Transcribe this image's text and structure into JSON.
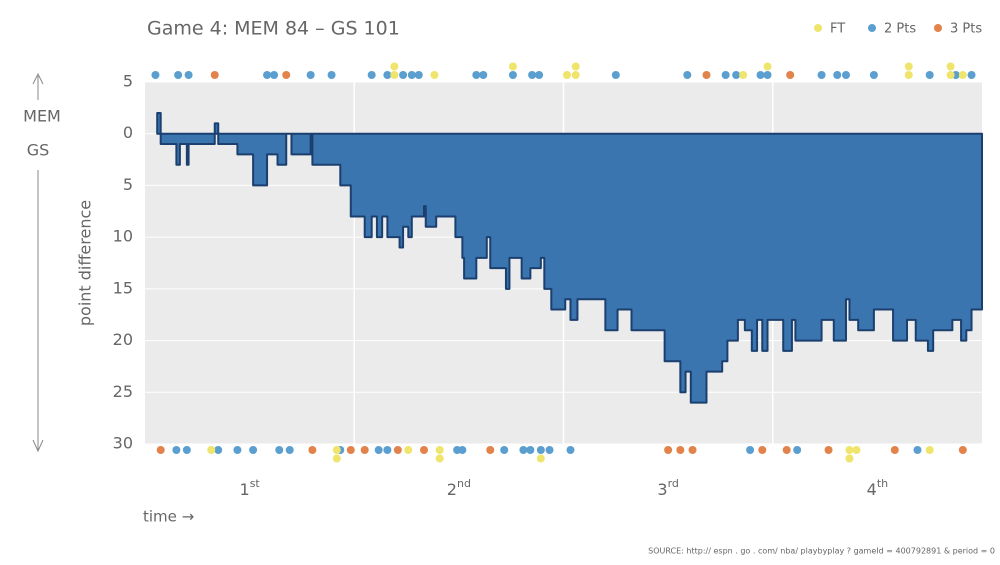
{
  "chart_data": {
    "type": "step-area",
    "title": "Game 4: MEM 84  –  GS 101",
    "ylabel": "point difference",
    "xlabel": "time →",
    "top_team": "MEM",
    "bottom_team": "GS",
    "source": "SOURCE:  http:// espn . go . com/ nba/ playbyplay ? gameId = 400792891 & period = 0",
    "xlim": [
      0,
      48
    ],
    "ylim": [
      -30,
      5
    ],
    "yticks": [
      5,
      0,
      {
        "value": -5,
        "label": "5"
      },
      {
        "value": -10,
        "label": "10"
      },
      {
        "value": -15,
        "label": "15"
      },
      {
        "value": -20,
        "label": "20"
      },
      {
        "value": -25,
        "label": "25"
      },
      {
        "value": -30,
        "label": "30"
      }
    ],
    "xgrid": [
      12,
      24,
      36
    ],
    "xticks": [
      {
        "value": 6,
        "label": "1",
        "sup": "st"
      },
      {
        "value": 18,
        "label": "2",
        "sup": "nd"
      },
      {
        "value": 30,
        "label": "3",
        "sup": "rd"
      },
      {
        "value": 42,
        "label": "4",
        "sup": "th"
      }
    ],
    "grid": true,
    "fill": "#3a75b0",
    "stroke": "#1b3f6e",
    "x": [
      0.7,
      0.9,
      1.8,
      2.0,
      2.4,
      2.5,
      4.0,
      4.2,
      5.3,
      6.2,
      7.0,
      7.6,
      8.1,
      8.4,
      9.5,
      9.6,
      11.2,
      11.8,
      12.6,
      13.0,
      13.3,
      13.6,
      13.9,
      14.6,
      14.8,
      15.1,
      15.3,
      16.0,
      16.1,
      16.7,
      17.8,
      18.2,
      18.3,
      19.0,
      19.6,
      19.8,
      20.7,
      20.9,
      21.6,
      22.1,
      22.7,
      22.9,
      23.3,
      24.1,
      24.4,
      24.8,
      26.4,
      27.1,
      27.9,
      29.8,
      30.7,
      31.0,
      31.3,
      32.2,
      33.1,
      33.4,
      34.0,
      34.4,
      34.8,
      35.1,
      35.4,
      35.7,
      36.6,
      37.1,
      37.3,
      38.8,
      39.5,
      40.2,
      40.4,
      40.9,
      41.8,
      42.9,
      43.7,
      44.2,
      44.9,
      45.2,
      46.3,
      46.8,
      47.1,
      47.4,
      48
    ],
    "values": [
      2,
      -1,
      -3,
      -1,
      -3,
      -1,
      1,
      -1,
      -2,
      -5,
      -2,
      -3,
      0,
      -2,
      0,
      -3,
      -5,
      -8,
      -10,
      -8,
      -10,
      -8,
      -10,
      -11,
      -9,
      -10,
      -8,
      -7,
      -9,
      -8,
      -10,
      -12,
      -14,
      -12,
      -10,
      -13,
      -15,
      -12,
      -14,
      -13,
      -12,
      -15,
      -17,
      -16,
      -18,
      -16,
      -19,
      -17,
      -19,
      -22,
      -25,
      -23,
      -26,
      -23,
      -22,
      -20,
      -18,
      -19,
      -21,
      -18,
      -21,
      -18,
      -21,
      -18,
      -20,
      -18,
      -20,
      -16,
      -18,
      -19,
      -17,
      -20,
      -18,
      -20,
      -21,
      -19,
      -18,
      -20,
      -19,
      -17,
      -17
    ],
    "legend": "top-right",
    "series": [
      {
        "name": "FT",
        "color": "#efe46c",
        "top_x": [
          14.3,
          14.3,
          16.6,
          21.1,
          24.2,
          24.7,
          24.7,
          34.3,
          35.7,
          43.8,
          43.8,
          46.2,
          46.2,
          46.9
        ],
        "bottom_x": [
          3.8,
          11.0,
          11.0,
          15.1,
          16.9,
          16.9,
          22.7,
          40.4,
          40.4,
          40.8,
          45.0
        ]
      },
      {
        "name": "2 Pts",
        "color": "#5b9fd0",
        "top_x": [
          0.6,
          1.9,
          2.5,
          7.0,
          7.4,
          9.5,
          10.7,
          13.0,
          13.9,
          14.8,
          15.3,
          15.7,
          19.0,
          19.4,
          21.1,
          22.2,
          22.6,
          27.0,
          31.1,
          33.3,
          33.9,
          35.3,
          35.7,
          38.8,
          39.7,
          40.2,
          41.8,
          45.0,
          46.5,
          47.4
        ],
        "bottom_x": [
          1.8,
          2.4,
          4.2,
          5.3,
          6.2,
          7.7,
          8.3,
          11.2,
          13.4,
          13.9,
          17.9,
          18.2,
          20.6,
          21.7,
          22.1,
          22.7,
          23.2,
          24.4,
          34.7,
          37.4,
          44.3
        ]
      },
      {
        "name": "3 Pts",
        "color": "#e1834a",
        "top_x": [
          4.0,
          8.1,
          32.2,
          37.0
        ],
        "bottom_x": [
          0.9,
          9.6,
          11.8,
          12.6,
          14.5,
          16.0,
          19.8,
          30.0,
          30.7,
          31.4,
          35.4,
          36.8,
          39.2,
          43.0,
          46.9
        ]
      }
    ]
  }
}
